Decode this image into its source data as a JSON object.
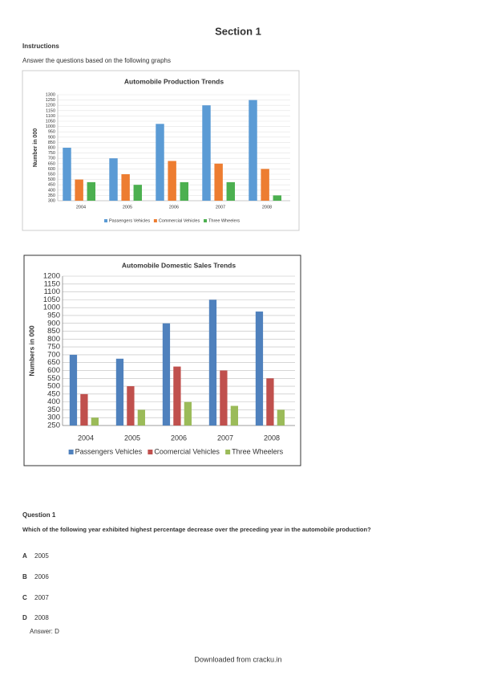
{
  "header": {
    "title": "Section 1"
  },
  "instructions": {
    "heading": "Instructions",
    "text": "Answer the questions based on the following graphs"
  },
  "chart_data": [
    {
      "type": "bar",
      "title": "Automobile Production Trends",
      "y_label": "Number in 000",
      "categories": [
        "2004",
        "2005",
        "2006",
        "2007",
        "2008"
      ],
      "series": [
        {
          "name": "Passengers Vehicles",
          "color": "#5b9bd5",
          "values": [
            800,
            700,
            1025,
            1200,
            1250
          ]
        },
        {
          "name": "Commercial Vehicles",
          "color": "#ed7d31",
          "values": [
            500,
            550,
            675,
            650,
            600
          ]
        },
        {
          "name": "Three Wheelers",
          "color": "#4cb050",
          "values": [
            475,
            450,
            475,
            475,
            350
          ]
        }
      ],
      "ylim": [
        300,
        1300
      ],
      "yticks": [
        300,
        350,
        400,
        450,
        500,
        550,
        600,
        650,
        700,
        750,
        800,
        850,
        900,
        950,
        1000,
        1050,
        1100,
        1150,
        1200,
        1250,
        1300
      ],
      "grid": true,
      "legend": "bottom"
    },
    {
      "type": "bar",
      "title": "Automobile Domestic Sales Trends",
      "y_label": "Numbers in 000",
      "categories": [
        "2004",
        "2005",
        "2006",
        "2007",
        "2008"
      ],
      "series": [
        {
          "name": "Passengers Vehicles",
          "color": "#4f81bd",
          "values": [
            700,
            675,
            900,
            1050,
            975
          ]
        },
        {
          "name": "Coomercial Vehicles",
          "color": "#c0504d",
          "values": [
            450,
            500,
            625,
            600,
            550
          ]
        },
        {
          "name": "Three Wheelers",
          "color": "#9bbb59",
          "values": [
            300,
            350,
            400,
            375,
            350
          ]
        }
      ],
      "ylim": [
        250,
        1200
      ],
      "yticks": [
        250,
        300,
        350,
        400,
        450,
        500,
        550,
        600,
        650,
        700,
        750,
        800,
        850,
        900,
        950,
        1000,
        1050,
        1100,
        1150,
        1200
      ],
      "grid": true,
      "legend": "bottom"
    }
  ],
  "question": {
    "heading": "Question 1",
    "text": "Which of the following year exhibited highest percentage decrease over the preceding year in the automobile production?"
  },
  "options": [
    {
      "letter": "A",
      "text": "2005"
    },
    {
      "letter": "B",
      "text": "2006"
    },
    {
      "letter": "C",
      "text": "2007"
    },
    {
      "letter": "D",
      "text": "2008"
    }
  ],
  "answer": "Answer: D",
  "footer": "Downloaded from cracku.in"
}
